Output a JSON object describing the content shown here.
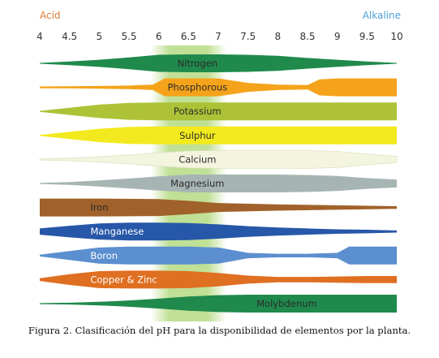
{
  "chart_data": {
    "type": "area",
    "axis_start_label": "Acid",
    "axis_end_label": "Alkaline",
    "xlim": [
      4,
      10
    ],
    "ticks": [
      "4",
      "4.5",
      "5",
      "5.5",
      "6",
      "6.5",
      "7",
      "7.5",
      "8",
      "8.5",
      "9",
      "9.5",
      "10"
    ],
    "highlight_range": [
      6,
      7
    ],
    "highlight_color": "#8cc63f",
    "series": [
      {
        "name": "Nitrogen",
        "color": "#1f8a4c",
        "light_text": false,
        "x": [
          4,
          4.5,
          5,
          5.5,
          6,
          6.5,
          7,
          7.5,
          8,
          8.5,
          9,
          9.5,
          10
        ],
        "thickness": [
          0.05,
          0.2,
          0.4,
          0.65,
          0.95,
          1.0,
          1.0,
          0.95,
          0.85,
          0.6,
          0.4,
          0.2,
          0.05
        ]
      },
      {
        "name": "Phosphorous",
        "color": "#f5a31a",
        "light_text": false,
        "x": [
          4,
          4.5,
          5,
          5.5,
          5.9,
          6.1,
          6.5,
          7,
          7.5,
          8,
          8.5,
          8.7,
          9,
          10
        ],
        "thickness": [
          0.1,
          0.12,
          0.15,
          0.2,
          0.3,
          1.0,
          1.0,
          1.0,
          0.5,
          0.3,
          0.25,
          0.9,
          1.0,
          1.0
        ]
      },
      {
        "name": "Potassium",
        "color": "#adc236",
        "light_text": false,
        "x": [
          4,
          4.5,
          5,
          5.5,
          6,
          10
        ],
        "thickness": [
          0.05,
          0.4,
          0.75,
          0.95,
          1.0,
          1.0
        ]
      },
      {
        "name": "Sulphur",
        "color": "#f2ea1e",
        "light_text": false,
        "x": [
          4,
          4.5,
          5,
          5.5,
          6,
          10
        ],
        "thickness": [
          0.05,
          0.4,
          0.75,
          0.95,
          1.0,
          1.0
        ]
      },
      {
        "name": "Calcium",
        "color": "#f4f5df",
        "light_text": false,
        "x": [
          4,
          4.5,
          5,
          5.5,
          6,
          6.5,
          7,
          7.5,
          8,
          8.5,
          9,
          9.5,
          10
        ],
        "thickness": [
          0.05,
          0.15,
          0.3,
          0.5,
          0.75,
          0.95,
          1.0,
          1.0,
          1.0,
          1.0,
          0.9,
          0.6,
          0.35
        ]
      },
      {
        "name": "Magnesium",
        "color": "#a6b5b3",
        "light_text": false,
        "x": [
          4,
          4.5,
          5,
          5.5,
          6,
          6.5,
          7,
          7.5,
          8,
          8.5,
          9,
          9.5,
          10
        ],
        "thickness": [
          0.05,
          0.15,
          0.35,
          0.55,
          0.8,
          1.0,
          1.0,
          1.0,
          1.0,
          0.95,
          0.85,
          0.6,
          0.45
        ]
      },
      {
        "name": "Iron",
        "color": "#a0622a",
        "light_text": false,
        "x": [
          4,
          5,
          6,
          6.5,
          7,
          8,
          9,
          10
        ],
        "thickness": [
          1.0,
          1.0,
          0.95,
          0.75,
          0.5,
          0.35,
          0.25,
          0.15
        ]
      },
      {
        "name": "Manganese",
        "color": "#2757a8",
        "light_text": true,
        "x": [
          4,
          4.5,
          5,
          5.5,
          6,
          6.5,
          7,
          7.5,
          8,
          8.5,
          9,
          9.5,
          10
        ],
        "thickness": [
          0.35,
          0.65,
          0.9,
          1.0,
          1.0,
          0.95,
          0.8,
          0.6,
          0.45,
          0.35,
          0.25,
          0.2,
          0.12
        ]
      },
      {
        "name": "Boron",
        "color": "#5b8fd0",
        "light_text": true,
        "x": [
          4,
          4.5,
          5,
          5.5,
          6,
          6.5,
          7,
          7.5,
          8,
          8.5,
          9,
          9.2,
          9.4,
          9.7,
          10
        ],
        "thickness": [
          0.1,
          0.5,
          0.9,
          1.0,
          1.0,
          1.0,
          0.9,
          0.3,
          0.2,
          0.2,
          0.3,
          1.0,
          1.0,
          1.0,
          1.0
        ]
      },
      {
        "name": "Copper & Zinc",
        "color": "#df6f21",
        "light_text": true,
        "x": [
          4,
          4.5,
          5,
          5.5,
          6,
          6.5,
          7,
          7.5,
          8,
          8.5,
          9,
          9.5,
          10
        ],
        "thickness": [
          0.15,
          0.6,
          0.95,
          1.0,
          1.0,
          0.95,
          0.75,
          0.45,
          0.3,
          0.3,
          0.35,
          0.4,
          0.4
        ]
      },
      {
        "name": "Molybdenum",
        "color": "#1f8a4c",
        "light_text": false,
        "x": [
          4,
          4.5,
          5,
          5.5,
          6,
          6.5,
          7,
          7.5,
          10
        ],
        "thickness": [
          0.05,
          0.1,
          0.2,
          0.35,
          0.55,
          0.8,
          0.95,
          1.0,
          1.0
        ]
      }
    ]
  },
  "caption": "Figura 2. Clasificación del pH para la disponibilidad de elementos por la planta.",
  "colors": {
    "acid": "#e07a2f",
    "alkaline": "#4a9fd8"
  }
}
